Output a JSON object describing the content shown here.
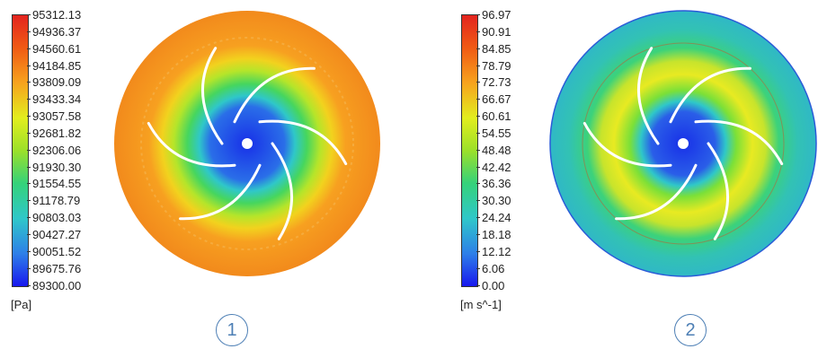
{
  "panels": [
    {
      "legend": {
        "ticks": [
          "95312.13",
          "94936.37",
          "94560.61",
          "94184.85",
          "93809.09",
          "93433.34",
          "93057.58",
          "92681.82",
          "92306.06",
          "91930.30",
          "91554.55",
          "91178.79",
          "90803.03",
          "90427.27",
          "90051.52",
          "89675.76",
          "89300.00"
        ],
        "unit": "[Pa]"
      },
      "number": "1"
    },
    {
      "legend": {
        "ticks": [
          "96.97",
          "90.91",
          "84.85",
          "78.79",
          "72.73",
          "66.67",
          "60.61",
          "54.55",
          "48.48",
          "42.42",
          "36.36",
          "30.30",
          "24.24",
          "18.18",
          "12.12",
          "6.06",
          "0.00"
        ],
        "unit": "[m s^-1]"
      },
      "number": "2"
    }
  ],
  "colors": {
    "colormap": [
      "#e3241f",
      "#f05a14",
      "#f7a31e",
      "#e2ee1e",
      "#9be02a",
      "#35d27a",
      "#2fc7c9",
      "#2e7fe8",
      "#1818ee"
    ],
    "marker": "#4d7fb5"
  }
}
